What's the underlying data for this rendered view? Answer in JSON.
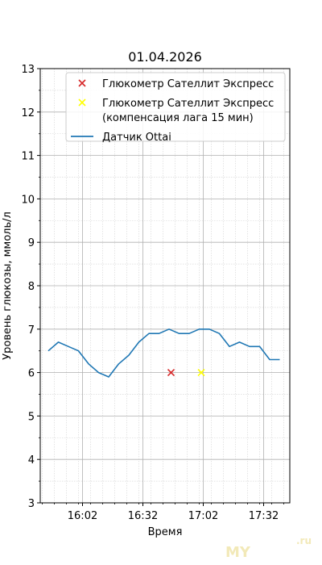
{
  "chart_data": {
    "type": "line",
    "title": "01.04.2026",
    "xlabel": "Время",
    "ylabel": "Уровень глюкозы, ммоль/л",
    "ylim": [
      3,
      13
    ],
    "yticks": [
      "3",
      "4",
      "5",
      "6",
      "7",
      "8",
      "9",
      "10",
      "11",
      "12",
      "13"
    ],
    "x_axis": {
      "unit": "time",
      "tick_labels": [
        "16:02",
        "16:32",
        "17:02",
        "17:32"
      ],
      "tick_minutes": [
        962,
        992,
        1022,
        1052
      ],
      "range_minutes": [
        941,
        1065
      ]
    },
    "grid": true,
    "minor_grid": true,
    "legend_position": "top-right",
    "series": [
      {
        "name": "Глюкометр Сателлит Экспресс",
        "kind": "scatter",
        "marker": "x",
        "color": "#d62728",
        "points": [
          {
            "x_minutes": 1006,
            "y": 6.0
          }
        ]
      },
      {
        "name": "Глюкометр Сателлит Экспресс (компенсация лага 15 мин)",
        "name_lines": [
          "Глюкометр Сателлит Экспресс",
          "(компенсация лага 15 мин)"
        ],
        "kind": "scatter",
        "marker": "x",
        "color": "#ffff00",
        "points": [
          {
            "x_minutes": 1021,
            "y": 6.0
          }
        ]
      },
      {
        "name": "Датчик Ottai",
        "kind": "line",
        "color": "#1f77b4",
        "x_minutes": [
          945,
          950,
          955,
          960,
          965,
          970,
          975,
          980,
          985,
          990,
          995,
          1000,
          1005,
          1010,
          1015,
          1020,
          1025,
          1030,
          1035,
          1040,
          1045,
          1050,
          1055,
          1060
        ],
        "values": [
          6.5,
          6.7,
          6.6,
          6.5,
          6.2,
          6.0,
          5.9,
          6.2,
          6.4,
          6.7,
          6.9,
          6.9,
          7.0,
          6.9,
          6.9,
          7.0,
          7.0,
          6.9,
          6.6,
          6.7,
          6.6,
          6.6,
          6.3,
          6.3
        ]
      }
    ]
  },
  "watermark": {
    "text": "MY",
    "suffix": ".ru"
  }
}
